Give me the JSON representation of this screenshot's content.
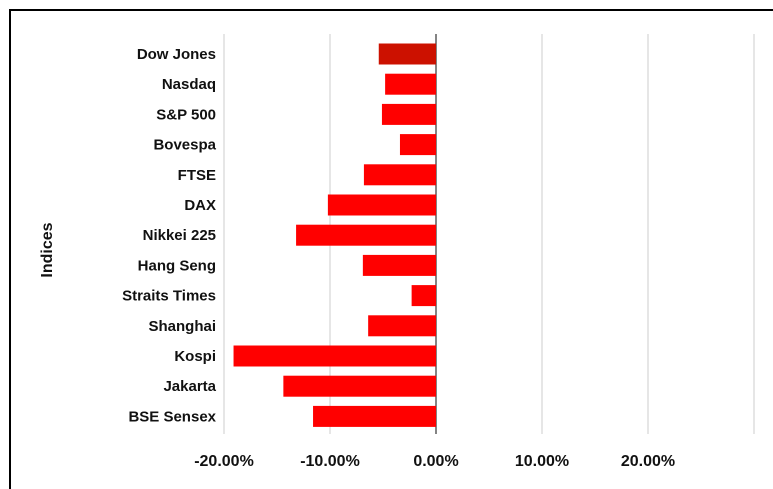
{
  "chart_data": {
    "type": "bar",
    "orientation": "horizontal",
    "ylabel": "Indices",
    "xlabel": "",
    "categories": [
      "Dow Jones",
      "Nasdaq",
      "S&P 500",
      "Bovespa",
      "FTSE",
      "DAX",
      "Nikkei 225",
      "Hang Seng",
      "Straits Times",
      "Shanghai",
      "Kospi",
      "Jakarta",
      "BSE Sensex"
    ],
    "values": [
      -5.4,
      -4.8,
      -5.1,
      -3.4,
      -6.8,
      -10.2,
      -13.2,
      -6.9,
      -2.3,
      -6.4,
      -19.1,
      -14.4,
      -11.6
    ],
    "xlim": [
      -20,
      30
    ],
    "xticks": [
      -20,
      -10,
      0,
      10,
      20,
      30
    ],
    "xtick_labels": [
      "-20.00%",
      "-10.00%",
      "0.00%",
      "10.00%",
      "20.00%",
      ""
    ],
    "grid": "vertical",
    "colors": {
      "first_bar": "#cc1100",
      "bars": "#ff0000",
      "grid": "#cccccc",
      "zero_line": "#333333"
    }
  }
}
